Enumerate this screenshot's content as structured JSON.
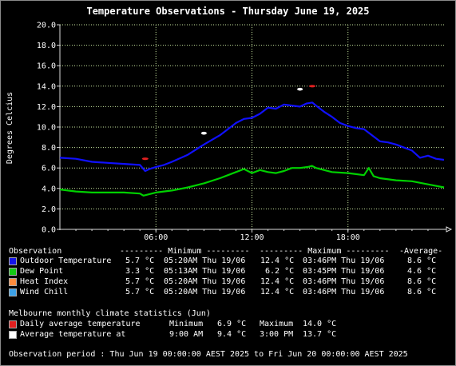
{
  "chart_data": {
    "type": "line",
    "title": "Temperature Observations - Thursday June 19, 2025",
    "ylabel": "Degrees Celcius",
    "xlabel": "",
    "ylim": [
      0,
      20
    ],
    "yticks": [
      "0.0",
      "2.0",
      "4.0",
      "6.0",
      "8.0",
      "10.0",
      "12.0",
      "14.0",
      "16.0",
      "18.0",
      "20.0"
    ],
    "xlim_hours": [
      0,
      24
    ],
    "xticks": [
      {
        "hour": 6,
        "label": "06:00"
      },
      {
        "hour": 12,
        "label": "12:00"
      },
      {
        "hour": 18,
        "label": "18:00"
      }
    ],
    "grid": true,
    "series": [
      {
        "name": "Outdoor Temperature",
        "color": "#1010ff",
        "x": [
          0,
          1,
          2,
          3,
          4,
          5,
          5.33,
          5.6,
          6,
          6.5,
          7,
          8,
          9,
          10,
          10.5,
          11,
          11.5,
          12,
          12.5,
          13,
          13.5,
          14,
          14.5,
          15,
          15.4,
          15.77,
          16,
          16.5,
          17,
          17.5,
          18,
          18.5,
          19,
          19.5,
          20,
          20.5,
          21,
          22,
          22.5,
          23,
          23.5,
          24
        ],
        "y": [
          7.0,
          6.9,
          6.6,
          6.5,
          6.4,
          6.3,
          5.7,
          5.9,
          6.1,
          6.3,
          6.6,
          7.3,
          8.3,
          9.2,
          9.8,
          10.4,
          10.8,
          10.9,
          11.3,
          11.9,
          11.8,
          12.2,
          12.1,
          12.0,
          12.3,
          12.4,
          12.1,
          11.5,
          11.0,
          10.4,
          10.1,
          9.9,
          9.8,
          9.2,
          8.6,
          8.5,
          8.3,
          7.7,
          7.0,
          7.2,
          6.9,
          6.8
        ]
      },
      {
        "name": "Dew Point",
        "color": "#00d000",
        "x": [
          0,
          1,
          2,
          3,
          4,
          5,
          5.22,
          6,
          7,
          8,
          9,
          10,
          10.5,
          11,
          11.5,
          12,
          12.5,
          13,
          13.5,
          14,
          14.5,
          15,
          15.5,
          15.75,
          16,
          17,
          18,
          18.5,
          19,
          19.3,
          19.6,
          20,
          21,
          22,
          23,
          24
        ],
        "y": [
          3.9,
          3.7,
          3.6,
          3.6,
          3.6,
          3.5,
          3.3,
          3.6,
          3.8,
          4.1,
          4.5,
          5.0,
          5.3,
          5.6,
          5.9,
          5.5,
          5.8,
          5.6,
          5.5,
          5.7,
          6.0,
          6.0,
          6.1,
          6.2,
          6.0,
          5.6,
          5.5,
          5.4,
          5.3,
          6.0,
          5.2,
          5.0,
          4.8,
          4.7,
          4.4,
          4.1
        ]
      }
    ],
    "legend": {
      "heading": "Observation",
      "columns": [
        "--------- Minimum ---------",
        "--------- Maximum ---------",
        "-Average-"
      ],
      "rows": [
        {
          "name": "Outdoor Temperature",
          "color": "#1414e8",
          "min": "5.7 °C",
          "min_time": "05:20AM Thu 19/06",
          "max": "12.4 °C",
          "max_time": "03:46PM Thu 19/06",
          "avg": "8.6 °C"
        },
        {
          "name": "Dew Point",
          "color": "#14c814",
          "min": "3.3 °C",
          "min_time": "05:13AM Thu 19/06",
          "max": "6.2 °C",
          "max_time": "03:45PM Thu 19/06",
          "avg": "4.6 °C"
        },
        {
          "name": "Heat Index",
          "color": "#ff8c3c",
          "min": "5.7 °C",
          "min_time": "05:20AM Thu 19/06",
          "max": "12.4 °C",
          "max_time": "03:46PM Thu 19/06",
          "avg": "8.6 °C"
        },
        {
          "name": "Wind Chill",
          "color": "#3ca0e6",
          "min": "5.7 °C",
          "min_time": "05:20AM Thu 19/06",
          "max": "12.4 °C",
          "max_time": "03:46PM Thu 19/06",
          "avg": "8.6 °C"
        }
      ]
    },
    "climate": {
      "heading": "Melbourne monthly climate statistics (Jun)",
      "daily_avg": {
        "label": "Daily average temperature",
        "color": "#e02020",
        "min_label": "Minimum",
        "min": "6.9 °C",
        "max_label": "Maximum",
        "max": "14.0 °C",
        "min_hour": 5.33,
        "min_value": 6.9,
        "max_hour": 15.77,
        "max_value": 14.0
      },
      "avg_at": {
        "label": "Average temperature at",
        "color": "#ffffff",
        "t1": "9:00 AM",
        "v1": "9.4 °C",
        "t2": "3:00 PM",
        "v2": "13.7 °C",
        "h1": 9,
        "y1": 9.4,
        "h2": 15,
        "y2": 13.7
      }
    },
    "period": "Observation period : Thu Jun 19 00:00:00 AEST 2025 to Fri Jun 20 00:00:00 AEST 2025"
  }
}
